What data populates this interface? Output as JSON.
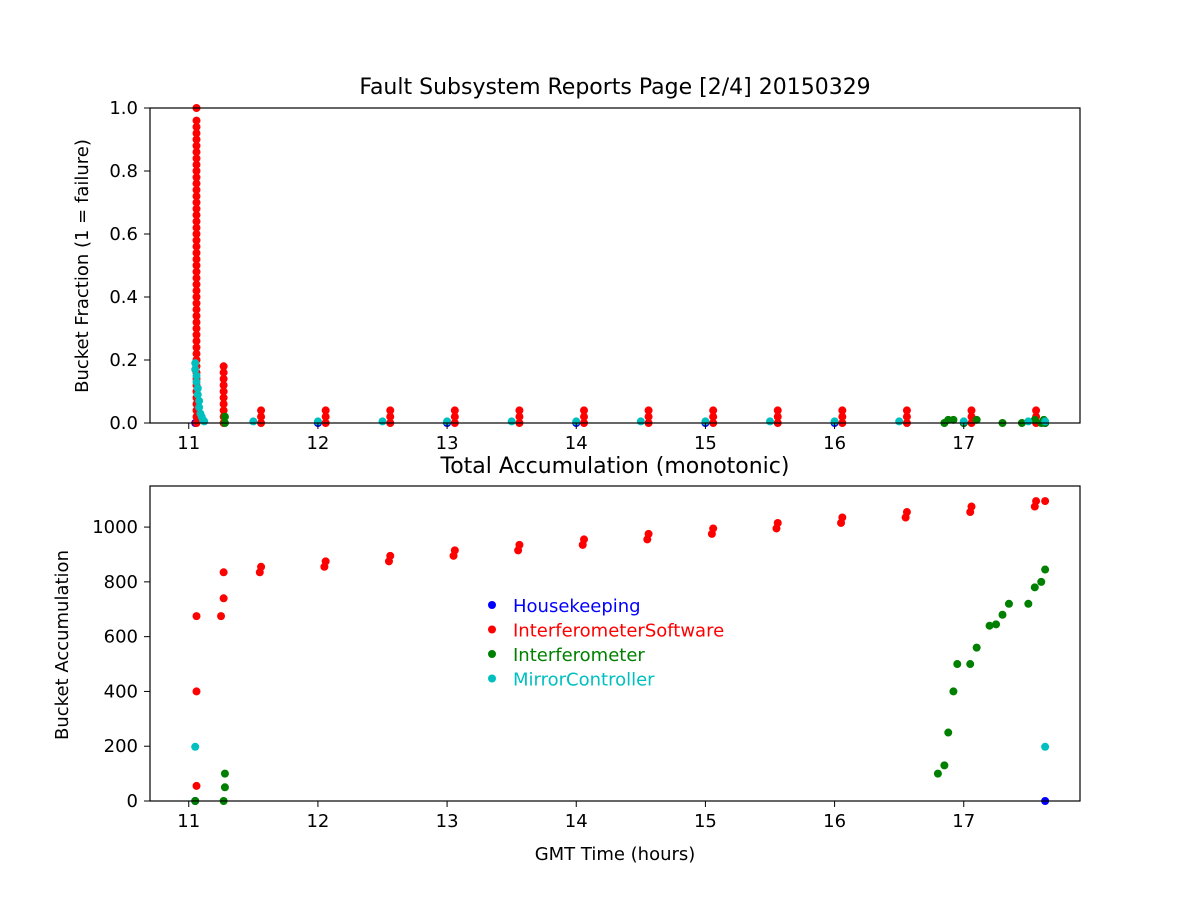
{
  "chart_data": [
    {
      "type": "scatter",
      "title": "Fault Subsystem Reports Page [2/4] 20150329",
      "xlabel": "",
      "ylabel": "Bucket Fraction (1 = failure)",
      "xlim": [
        10.7,
        17.9
      ],
      "ylim": [
        0,
        1.0
      ],
      "xticks": [
        "11",
        "12",
        "13",
        "14",
        "15",
        "16",
        "17"
      ],
      "yticks": [
        "0.0",
        "0.2",
        "0.4",
        "0.6",
        "0.8",
        "1.0"
      ],
      "grid": false,
      "series": [
        {
          "name": "Housekeeping",
          "color": "#0000ff",
          "x": [
            11.05,
            12.0,
            13.0,
            14.0,
            15.0,
            16.0,
            17.0,
            17.63
          ],
          "y": [
            0,
            0,
            0,
            0,
            0,
            0,
            0,
            0
          ]
        },
        {
          "name": "InterferometerSoftware",
          "color": "#ff0000",
          "x": [
            11.06,
            11.06,
            11.06,
            11.06,
            11.06,
            11.06,
            11.06,
            11.06,
            11.06,
            11.06,
            11.06,
            11.06,
            11.06,
            11.06,
            11.06,
            11.06,
            11.06,
            11.06,
            11.06,
            11.06,
            11.06,
            11.06,
            11.06,
            11.06,
            11.06,
            11.06,
            11.06,
            11.06,
            11.06,
            11.06,
            11.06,
            11.06,
            11.06,
            11.06,
            11.06,
            11.06,
            11.06,
            11.06,
            11.06,
            11.06,
            11.06,
            11.06,
            11.06,
            11.06,
            11.06,
            11.06,
            11.06,
            11.06,
            11.06,
            11.06,
            11.27,
            11.27,
            11.27,
            11.27,
            11.27,
            11.27,
            11.27,
            11.27,
            11.27,
            11.27,
            11.56,
            11.56,
            11.56,
            12.06,
            12.06,
            12.06,
            12.56,
            12.56,
            12.56,
            13.06,
            13.06,
            13.06,
            13.56,
            13.56,
            13.56,
            14.06,
            14.06,
            14.06,
            14.56,
            14.56,
            14.56,
            15.06,
            15.06,
            15.06,
            15.56,
            15.56,
            15.56,
            16.06,
            16.06,
            16.06,
            16.56,
            16.56,
            16.56,
            17.06,
            17.06,
            17.06,
            17.56,
            17.56,
            17.56
          ],
          "y": [
            0.0,
            0.02,
            0.04,
            0.06,
            0.08,
            0.1,
            0.12,
            0.14,
            0.16,
            0.18,
            0.2,
            0.22,
            0.24,
            0.26,
            0.28,
            0.3,
            0.32,
            0.34,
            0.36,
            0.38,
            0.4,
            0.42,
            0.44,
            0.46,
            0.48,
            0.5,
            0.52,
            0.54,
            0.56,
            0.58,
            0.6,
            0.62,
            0.64,
            0.66,
            0.68,
            0.7,
            0.72,
            0.74,
            0.76,
            0.78,
            0.8,
            0.82,
            0.84,
            0.86,
            0.88,
            0.9,
            0.92,
            0.94,
            0.96,
            1.0,
            0.0,
            0.02,
            0.04,
            0.06,
            0.08,
            0.1,
            0.12,
            0.14,
            0.16,
            0.18,
            0.0,
            0.02,
            0.04,
            0.0,
            0.02,
            0.04,
            0.0,
            0.02,
            0.04,
            0.0,
            0.02,
            0.04,
            0.0,
            0.02,
            0.04,
            0.0,
            0.02,
            0.04,
            0.0,
            0.02,
            0.04,
            0.0,
            0.02,
            0.04,
            0.0,
            0.02,
            0.04,
            0.0,
            0.02,
            0.04,
            0.0,
            0.02,
            0.04,
            0.0,
            0.02,
            0.04,
            0.0,
            0.02,
            0.04
          ]
        },
        {
          "name": "Interferometer",
          "color": "#008000",
          "x": [
            11.28,
            11.28,
            16.85,
            16.88,
            16.92,
            17.0,
            17.1,
            17.3,
            17.45,
            17.55,
            17.6,
            17.62,
            17.63
          ],
          "y": [
            0.0,
            0.02,
            0.0,
            0.01,
            0.01,
            0.0,
            0.01,
            0.0,
            0.0,
            0.01,
            0.0,
            0.01,
            0.0
          ]
        },
        {
          "name": "MirrorController",
          "color": "#00bfbf",
          "x": [
            11.05,
            11.05,
            11.06,
            11.06,
            11.07,
            11.07,
            11.08,
            11.08,
            11.09,
            11.1,
            11.11,
            11.12,
            11.5,
            12.0,
            12.5,
            13.0,
            13.5,
            14.0,
            14.5,
            15.0,
            15.5,
            16.0,
            16.5,
            17.0,
            17.5,
            17.63
          ],
          "y": [
            0.19,
            0.17,
            0.15,
            0.13,
            0.11,
            0.09,
            0.07,
            0.05,
            0.03,
            0.02,
            0.01,
            0.005,
            0.005,
            0.005,
            0.005,
            0.005,
            0.005,
            0.005,
            0.005,
            0.005,
            0.005,
            0.005,
            0.005,
            0.005,
            0.005,
            0.005
          ]
        }
      ]
    },
    {
      "type": "scatter",
      "title": "Total Accumulation (monotonic)",
      "xlabel": "GMT Time (hours)",
      "ylabel": "Bucket Accumulation",
      "xlim": [
        10.7,
        17.9
      ],
      "ylim": [
        0,
        1150
      ],
      "xticks": [
        "11",
        "12",
        "13",
        "14",
        "15",
        "16",
        "17"
      ],
      "yticks": [
        "0",
        "200",
        "400",
        "600",
        "800",
        "1000"
      ],
      "grid": false,
      "legend_position": "center",
      "series": [
        {
          "name": "Housekeeping",
          "color": "#0000ff",
          "x": [
            11.05,
            17.63
          ],
          "y": [
            0,
            0
          ]
        },
        {
          "name": "InterferometerSoftware",
          "color": "#ff0000",
          "x": [
            11.06,
            11.06,
            11.06,
            11.25,
            11.27,
            11.27,
            11.55,
            11.56,
            12.05,
            12.06,
            12.55,
            12.56,
            13.05,
            13.06,
            13.55,
            13.56,
            14.05,
            14.06,
            14.55,
            14.56,
            15.05,
            15.06,
            15.55,
            15.56,
            16.05,
            16.06,
            16.55,
            16.56,
            17.05,
            17.06,
            17.55,
            17.56,
            17.63
          ],
          "y": [
            55,
            400,
            675,
            675,
            740,
            835,
            835,
            855,
            855,
            875,
            875,
            895,
            895,
            915,
            915,
            935,
            935,
            955,
            955,
            975,
            975,
            995,
            995,
            1015,
            1015,
            1035,
            1035,
            1055,
            1055,
            1075,
            1075,
            1095,
            1095
          ]
        },
        {
          "name": "Interferometer",
          "color": "#008000",
          "x": [
            11.05,
            11.27,
            11.28,
            11.28,
            16.8,
            16.85,
            16.88,
            16.92,
            16.95,
            17.05,
            17.1,
            17.2,
            17.25,
            17.3,
            17.35,
            17.5,
            17.55,
            17.6,
            17.63
          ],
          "y": [
            0,
            0,
            50,
            100,
            100,
            130,
            250,
            400,
            500,
            500,
            560,
            640,
            645,
            680,
            720,
            720,
            780,
            800,
            845
          ]
        },
        {
          "name": "MirrorController",
          "color": "#00bfbf",
          "x": [
            11.05,
            17.63
          ],
          "y": [
            198,
            198
          ]
        }
      ]
    }
  ]
}
